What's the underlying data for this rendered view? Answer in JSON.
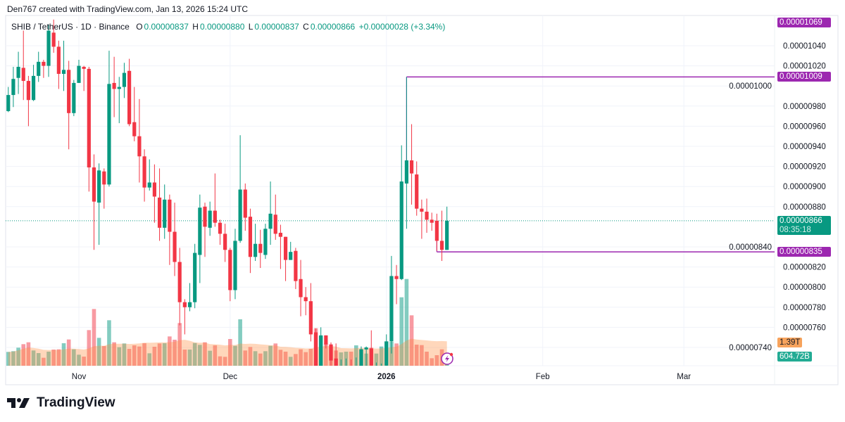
{
  "credit": "Den767 created with TradingView.com, Jan 13, 2026 15:24 UTC",
  "legend": {
    "symbol": "SHIB / TetherUS · 1D · Binance",
    "open_key": "O",
    "open": "0.00000837",
    "high_key": "H",
    "high": "0.00000880",
    "low_key": "L",
    "low": "0.00000837",
    "close_key": "C",
    "close": "0.00000866",
    "change": "+0.00000028 (+3.34%)"
  },
  "price_axis": {
    "ticks": [
      "0.00001040",
      "0.00001020",
      "0.00001000",
      "0.00000980",
      "0.00000960",
      "0.00000940",
      "0.00000920",
      "0.00000900",
      "0.00000880",
      "0.00000840",
      "0.00000820",
      "0.00000800",
      "0.00000780",
      "0.00000760",
      "0.00000740"
    ],
    "current_price": "0.00000866",
    "countdown": "08:35:18",
    "level_labels": [
      "0.00001069",
      "0.00001009",
      "0.00000835"
    ],
    "volume_ma_label": "1.39T",
    "volume_label": "604.72B"
  },
  "horizontal_lines": [
    {
      "price": "0.00001009",
      "from": "2026-01-05"
    },
    {
      "price": "0.00000835",
      "from": "2026-01-11"
    }
  ],
  "time_axis": [
    {
      "label": "Nov",
      "date": "2025-11-01"
    },
    {
      "label": "Dec",
      "date": "2025-12-01"
    },
    {
      "label": "2026",
      "date": "2026-01-01"
    },
    {
      "label": "Feb",
      "date": "2026-02-01"
    },
    {
      "label": "Mar",
      "date": "2026-03-01"
    }
  ],
  "colors": {
    "up": "#089981",
    "down": "#F23645",
    "levels": "#9C27B0",
    "volume_ma": "#FF9850"
  },
  "icons": {
    "logo": "tradingview-logo",
    "lightning": "lightning-icon"
  },
  "logo_text": "TradingView",
  "chart_data": {
    "type": "candlestick",
    "symbol": "SHIB / TetherUS",
    "interval": "1D",
    "ylim": [
      7.2e-06,
      1.07e-05
    ],
    "grid": true,
    "columns": [
      "date",
      "open",
      "high",
      "low",
      "close",
      "volume"
    ],
    "candles": [
      [
        "2025-10-18",
        9.75e-06,
        9.99e-06,
        9.74e-06,
        9.91e-06,
        826000000000.0
      ],
      [
        "2025-10-19",
        9.91e-06,
        1.019e-05,
        9.79e-06,
        1.007e-05,
        868000000000.0
      ],
      [
        "2025-10-20",
        1.008e-05,
        1.034e-05,
        9.92e-06,
        1.019e-05,
        1078000000000.0
      ],
      [
        "2025-10-21",
        1.018e-05,
        1.055e-05,
        9.86e-06,
        1.005e-05,
        1288000000000.0
      ],
      [
        "2025-10-22",
        1.005e-05,
        1.01e-05,
        9.6e-06,
        9.86e-06,
        1400000000000.0
      ],
      [
        "2025-10-23",
        9.86e-06,
        1.021e-05,
        9.85e-06,
        1.01e-05,
        910000000000.0
      ],
      [
        "2025-10-24",
        1.01e-05,
        1.034e-05,
        1.004e-05,
        1.024e-05,
        756000000000.0
      ],
      [
        "2025-10-25",
        1.024e-05,
        1.026e-05,
        1.008e-05,
        1.02e-05,
        476000000000.0
      ],
      [
        "2025-10-26",
        1.02e-05,
        1.061e-05,
        1.009e-05,
        1.055e-05,
        840000000000.0
      ],
      [
        "2025-10-27",
        1.053e-05,
        1.066e-05,
        1.033e-05,
        1.039e-05,
        966000000000.0
      ],
      [
        "2025-10-28",
        1.039e-05,
        1.045e-05,
        9.97e-06,
        1.012e-05,
        980000000000.0
      ],
      [
        "2025-10-29",
        1.012e-05,
        1.045e-05,
        9.95e-06,
        1.016e-05,
        1344000000000.0
      ],
      [
        "2025-10-30",
        1.016e-05,
        1.025e-05,
        9.37e-06,
        9.73e-06,
        1568000000000.0
      ],
      [
        "2025-10-31",
        9.73e-06,
        1.006e-05,
        9.7e-06,
        1.003e-05,
        980000000000.0
      ],
      [
        "2025-11-01",
        1.003e-05,
        1.026e-05,
        1.003e-05,
        1.02e-05,
        658000000000.0
      ],
      [
        "2025-11-02",
        1.019e-05,
        1.02e-05,
        9.95e-06,
        1.017e-05,
        546000000000.0
      ],
      [
        "2025-11-03",
        1.017e-05,
        1.019e-05,
        8.95e-06,
        9.19e-06,
        2128000000000.0
      ],
      [
        "2025-11-04",
        9.19e-06,
        9.32e-06,
        8.37e-06,
        8.85e-06,
        3388000000000.0
      ],
      [
        "2025-11-05",
        8.84e-06,
        9.23e-06,
        8.42e-06,
        9.16e-06,
        1666000000000.0
      ],
      [
        "2025-11-06",
        9.15e-06,
        9.18e-06,
        8.78e-06,
        9.02e-06,
        1176000000000.0
      ],
      [
        "2025-11-07",
        9.02e-06,
        1.035e-05,
        9e-06,
        1.002e-05,
        2716000000000.0
      ],
      [
        "2025-11-08",
        1.003e-05,
        1.029e-05,
        9.69e-06,
        9.97e-06,
        1400000000000.0
      ],
      [
        "2025-11-09",
        9.97e-06,
        1.009e-05,
        9.63e-06,
        9.99e-06,
        1106000000000.0
      ],
      [
        "2025-11-10",
        9.99e-06,
        1.023e-05,
        9.88e-06,
        1.013e-05,
        1330000000000.0
      ],
      [
        "2025-11-11",
        1.015e-05,
        1.027e-05,
        9.6e-06,
        9.62e-06,
        1008000000000.0
      ],
      [
        "2025-11-12",
        9.64e-06,
        9.99e-06,
        9.45e-06,
        9.5e-06,
        1218000000000.0
      ],
      [
        "2025-11-13",
        9.5e-06,
        9.87e-06,
        9.04e-06,
        9.3e-06,
        1148000000000.0
      ],
      [
        "2025-11-14",
        9.3e-06,
        9.37e-06,
        8.85e-06,
        8.99e-06,
        1344000000000.0
      ],
      [
        "2025-11-15",
        8.99e-06,
        9.27e-06,
        8.96e-06,
        9.04e-06,
        742000000000.0
      ],
      [
        "2025-11-16",
        9.04e-06,
        9.22e-06,
        8.64e-06,
        8.9e-06,
        1134000000000.0
      ],
      [
        "2025-11-17",
        8.89e-06,
        9.18e-06,
        8.46e-06,
        8.59e-06,
        1330000000000.0
      ],
      [
        "2025-11-18",
        8.59e-06,
        9.02e-06,
        8.48e-06,
        8.87e-06,
        1344000000000.0
      ],
      [
        "2025-11-19",
        8.87e-06,
        8.92e-06,
        8.22e-06,
        8.55e-06,
        1750000000000.0
      ],
      [
        "2025-11-20",
        8.55e-06,
        8.84e-06,
        8.11e-06,
        8.25e-06,
        1554000000000.0
      ],
      [
        "2025-11-21",
        8.25e-06,
        8.39e-06,
        7.62e-06,
        7.85e-06,
        2548000000000.0
      ],
      [
        "2025-11-22",
        7.85e-06,
        7.88e-06,
        7.53e-06,
        7.8e-06,
        966000000000.0
      ],
      [
        "2025-11-23",
        7.8e-06,
        8.04e-06,
        7.76e-06,
        7.85e-06,
        966000000000.0
      ],
      [
        "2025-11-24",
        7.85e-06,
        8.43e-06,
        7.79e-06,
        8.34e-06,
        1358000000000.0
      ],
      [
        "2025-11-25",
        8.32e-06,
        8.92e-06,
        8.04e-06,
        8.79e-06,
        1246000000000.0
      ],
      [
        "2025-11-26",
        8.8e-06,
        8.84e-06,
        8.3e-06,
        8.6e-06,
        1400000000000.0
      ],
      [
        "2025-11-27",
        8.59e-06,
        8.85e-06,
        8.51e-06,
        8.76e-06,
        896000000000.0
      ],
      [
        "2025-11-28",
        8.76e-06,
        9.13e-06,
        8.6e-06,
        8.64e-06,
        1218000000000.0
      ],
      [
        "2025-11-29",
        8.64e-06,
        8.67e-06,
        8.42e-06,
        8.53e-06,
        560000000000.0
      ],
      [
        "2025-11-30",
        8.53e-06,
        8.63e-06,
        8.25e-06,
        8.37e-06,
        532000000000.0
      ],
      [
        "2025-12-01",
        8.37e-06,
        8.39e-06,
        7.86e-06,
        7.97e-06,
        1596000000000.0
      ],
      [
        "2025-12-02",
        7.97e-06,
        8.58e-06,
        7.88e-06,
        8.46e-06,
        1190000000000.0
      ],
      [
        "2025-12-03",
        8.46e-06,
        9.51e-06,
        8.44e-06,
        8.97e-06,
        2772000000000.0
      ],
      [
        "2025-12-04",
        8.97e-06,
        9.03e-06,
        8.56e-06,
        8.69e-06,
        910000000000.0
      ],
      [
        "2025-12-05",
        8.7e-06,
        8.78e-06,
        8.14e-06,
        8.3e-06,
        1120000000000.0
      ],
      [
        "2025-12-06",
        8.3e-06,
        8.63e-06,
        8.26e-06,
        8.43e-06,
        868000000000.0
      ],
      [
        "2025-12-07",
        8.43e-06,
        8.57e-06,
        8.19e-06,
        8.34e-06,
        728000000000.0
      ],
      [
        "2025-12-08",
        8.32e-06,
        8.63e-06,
        8.28e-06,
        8.58e-06,
        868000000000.0
      ],
      [
        "2025-12-09",
        8.58e-06,
        9.05e-06,
        8.42e-06,
        8.73e-06,
        1190000000000.0
      ],
      [
        "2025-12-10",
        8.72e-06,
        8.92e-06,
        8.47e-06,
        8.53e-06,
        1330000000000.0
      ],
      [
        "2025-12-11",
        8.54e-06,
        8.62e-06,
        8.18e-06,
        8.5e-06,
        952000000000.0
      ],
      [
        "2025-12-12",
        8.5e-06,
        8.5e-06,
        8.06e-06,
        8.27e-06,
        840000000000.0
      ],
      [
        "2025-12-13",
        8.27e-06,
        8.45e-06,
        8.27e-06,
        8.35e-06,
        532000000000.0
      ],
      [
        "2025-12-14",
        8.36e-06,
        8.39e-06,
        7.98e-06,
        8.06e-06,
        700000000000.0
      ],
      [
        "2025-12-15",
        8.08e-06,
        8.27e-06,
        7.71e-06,
        7.9e-06,
        980000000000.0
      ],
      [
        "2025-12-16",
        7.9e-06,
        8e-06,
        7.72e-06,
        7.86e-06,
        812000000000.0
      ],
      [
        "2025-12-17",
        7.86e-06,
        8.04e-06,
        7.46e-06,
        7.53e-06,
        1008000000000.0
      ],
      [
        "2025-12-18",
        7.55e-06,
        7.59e-06,
        7.12e-06,
        7.18e-06,
        2240000000000.0
      ],
      [
        "2025-12-19",
        7.18e-06,
        7.6e-06,
        7.12e-06,
        7.52e-06,
        1750000000000.0
      ],
      [
        "2025-12-20",
        7.52e-06,
        7.52e-06,
        7.39e-06,
        7.43e-06,
        1330000000000.0
      ],
      [
        "2025-12-21",
        7.43e-06,
        7.45e-06,
        7.2e-06,
        7.27e-06,
        1148000000000.0
      ],
      [
        "2025-12-22",
        7.29e-06,
        7.44e-06,
        7.15e-06,
        7.2e-06,
        910000000000.0
      ],
      [
        "2025-12-23",
        7.14e-06,
        7.28e-06,
        7.08e-06,
        7.16e-06,
        798000000000.0
      ],
      [
        "2025-12-24",
        7.12e-06,
        7.29e-06,
        7.06e-06,
        7.15e-06,
        840000000000.0
      ],
      [
        "2025-12-25",
        7.15e-06,
        7.28e-06,
        7.08e-06,
        7.13e-06,
        840000000000.0
      ],
      [
        "2025-12-26",
        7.13e-06,
        7.3e-06,
        7.06e-06,
        7.16e-06,
        1218000000000.0
      ],
      [
        "2025-12-27",
        7.2e-06,
        7.41e-06,
        7.15e-06,
        7.38e-06,
        1008000000000.0
      ],
      [
        "2025-12-28",
        7.38e-06,
        7.41e-06,
        7.2e-06,
        7.4e-06,
        728000000000.0
      ],
      [
        "2025-12-29",
        7.39e-06,
        7.57e-06,
        7.15e-06,
        7.22e-06,
        1078000000000.0
      ],
      [
        "2025-12-30",
        7.16e-06,
        7.25e-06,
        7.1e-06,
        7.18e-06,
        728000000000.0
      ],
      [
        "2025-12-31",
        7.18e-06,
        7.24e-06,
        7.12e-06,
        7.2e-06,
        1148000000000.0
      ],
      [
        "2026-01-01",
        7.22e-06,
        7.53e-06,
        7.14e-06,
        7.46e-06,
        1456000000000.0
      ],
      [
        "2026-01-02",
        7.46e-06,
        8.31e-06,
        7.34e-06,
        8.11e-06,
        1428000000000.0
      ],
      [
        "2026-01-03",
        8.11e-06,
        8.22e-06,
        7.83e-06,
        8.08e-06,
        1330000000000.0
      ],
      [
        "2026-01-04",
        8.08e-06,
        9.41e-06,
        8.07e-06,
        9.05e-06,
        4088000000000.0
      ],
      [
        "2026-01-05",
        9.03e-06,
        1.009e-05,
        8.58e-06,
        9.26e-06,
        5180000000000.0
      ],
      [
        "2026-01-06",
        9.26e-06,
        9.62e-06,
        8.82e-06,
        9.13e-06,
        3010000000000.0
      ],
      [
        "2026-01-07",
        9.12e-06,
        9.25e-06,
        8.71e-06,
        8.78e-06,
        1260000000000.0
      ],
      [
        "2026-01-08",
        8.78e-06,
        8.87e-06,
        8.48e-06,
        8.75e-06,
        1232000000000.0
      ],
      [
        "2026-01-09",
        8.75e-06,
        8.88e-06,
        8.54e-06,
        8.67e-06,
        840000000000.0
      ],
      [
        "2026-01-10",
        8.67e-06,
        8.74e-06,
        8.56e-06,
        8.64e-06,
        448000000000.0
      ],
      [
        "2026-01-11",
        8.66e-06,
        8.73e-06,
        8.36e-06,
        8.46e-06,
        630000000000.0
      ],
      [
        "2026-01-12",
        8.46e-06,
        8.76e-06,
        8.26e-06,
        8.37e-06,
        980000000000.0
      ],
      [
        "2026-01-13",
        8.37e-06,
        8.8e-06,
        8.37e-06,
        8.66e-06,
        604720000000.0
      ]
    ]
  }
}
